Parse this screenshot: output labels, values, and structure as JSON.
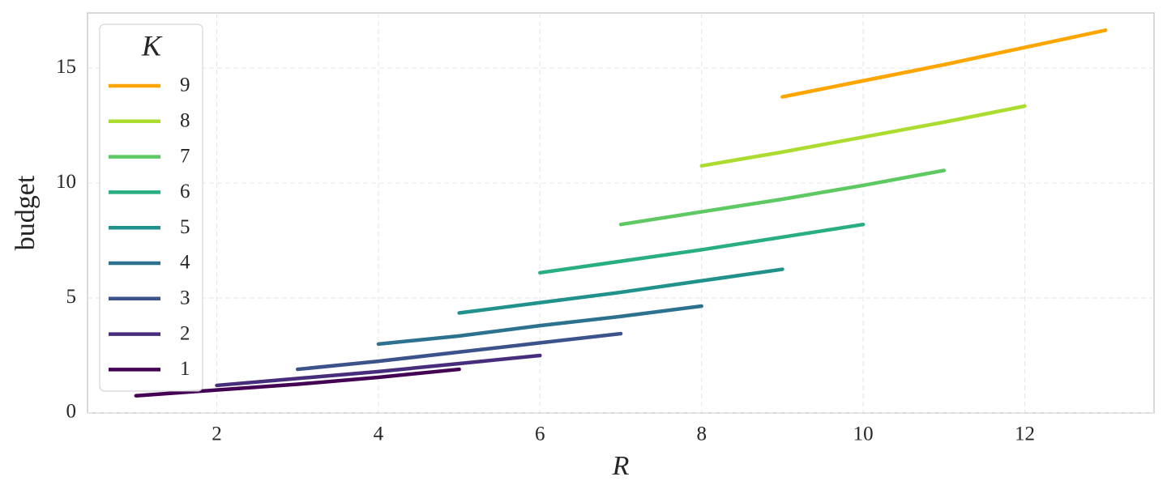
{
  "chart_data": {
    "type": "line",
    "xlabel": "R",
    "ylabel": "budget",
    "legend_title": "K",
    "legend": "upper left",
    "grid": true,
    "xlim": [
      0.4,
      13.6
    ],
    "ylim": [
      0,
      17.4
    ],
    "xticks": [
      2,
      4,
      6,
      8,
      10,
      12
    ],
    "yticks": [
      0,
      5,
      10,
      15
    ],
    "series": [
      {
        "name": "9",
        "color": "#ffa500",
        "x": [
          9,
          10,
          11,
          12,
          13
        ],
        "values": [
          13.75,
          14.45,
          15.15,
          15.9,
          16.65
        ]
      },
      {
        "name": "8",
        "color": "#addc30",
        "x": [
          8,
          9,
          10,
          11,
          12
        ],
        "values": [
          10.75,
          11.35,
          12.0,
          12.65,
          13.35
        ]
      },
      {
        "name": "7",
        "color": "#5ec962",
        "x": [
          7,
          8,
          9,
          10,
          11
        ],
        "values": [
          8.2,
          8.75,
          9.3,
          9.9,
          10.55
        ]
      },
      {
        "name": "6",
        "color": "#28ae80",
        "x": [
          6,
          7,
          8,
          9,
          10
        ],
        "values": [
          6.1,
          6.6,
          7.1,
          7.65,
          8.2
        ]
      },
      {
        "name": "5",
        "color": "#21918c",
        "x": [
          5,
          6,
          7,
          8,
          9
        ],
        "values": [
          4.35,
          4.8,
          5.25,
          5.75,
          6.25
        ]
      },
      {
        "name": "4",
        "color": "#2c728e",
        "x": [
          4,
          5,
          6,
          7,
          8
        ],
        "values": [
          3.0,
          3.35,
          3.8,
          4.2,
          4.65
        ]
      },
      {
        "name": "3",
        "color": "#3b528b",
        "x": [
          3,
          4,
          5,
          6,
          7
        ],
        "values": [
          1.9,
          2.25,
          2.65,
          3.05,
          3.45
        ]
      },
      {
        "name": "2",
        "color": "#472d7b",
        "x": [
          2,
          3,
          4,
          5,
          6
        ],
        "values": [
          1.2,
          1.5,
          1.8,
          2.15,
          2.5
        ]
      },
      {
        "name": "1",
        "color": "#440154",
        "x": [
          1,
          2,
          3,
          4,
          5
        ],
        "values": [
          0.75,
          1.0,
          1.25,
          1.55,
          1.9
        ]
      }
    ]
  }
}
